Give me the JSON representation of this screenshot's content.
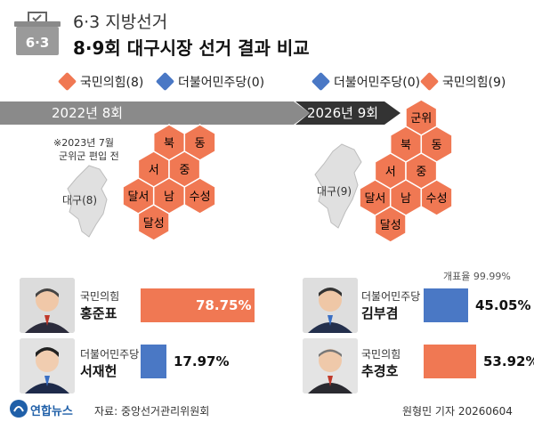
{
  "header": {
    "subtitle": "6·3 지방선거",
    "title": "8·9회 대구시장 선거 결과 비교",
    "icon_text": "6·3"
  },
  "colors": {
    "ppp": "#f07853",
    "dem": "#4a78c5",
    "arrow_gray": "#8a8a8a",
    "arrow_dark": "#333333"
  },
  "left": {
    "legend": [
      {
        "label": "국민의힘(8)",
        "color": "#f07853"
      },
      {
        "label": "더불어민주당(0)",
        "color": "#4a78c5"
      }
    ],
    "election_label": "2022년 8회",
    "map_note_line1": "※2023년 7월",
    "map_note_line2": "군위군 편입 전",
    "map_label": "대구(8)"
  },
  "right": {
    "legend": [
      {
        "label": "더불어민주당(0)",
        "color": "#4a78c5"
      },
      {
        "label": "국민의힘(9)",
        "color": "#f07853"
      }
    ],
    "election_label": "2026년 9회",
    "map_label": "대구(9)",
    "turnout": "개표율 99.99%"
  },
  "districts_left": [
    "북",
    "동",
    "서",
    "중",
    "달서",
    "남",
    "수성",
    "달성"
  ],
  "districts_right": [
    "군위",
    "북",
    "동",
    "서",
    "중",
    "달서",
    "남",
    "수성",
    "달성"
  ],
  "chart_data": [
    {
      "type": "bar",
      "title": "2022년 8회",
      "categories": [
        "홍준표",
        "서재헌"
      ],
      "parties": [
        "국민의힘",
        "더불어민주당"
      ],
      "values": [
        78.75,
        17.97
      ],
      "value_labels": [
        "78.75%",
        "17.97%"
      ],
      "colors": [
        "#f07853",
        "#4a78c5"
      ]
    },
    {
      "type": "bar",
      "title": "2026년 9회",
      "categories": [
        "김부겸",
        "추경호"
      ],
      "parties": [
        "더불어민주당",
        "국민의힘"
      ],
      "values": [
        45.05,
        53.92
      ],
      "value_labels": [
        "45.05%",
        "53.92%"
      ],
      "colors": [
        "#4a78c5",
        "#f07853"
      ]
    }
  ],
  "footer": {
    "logo": "연합뉴스",
    "source": "자료: 중앙선거관리위원회",
    "credit": "원형민 기자  20260604"
  }
}
